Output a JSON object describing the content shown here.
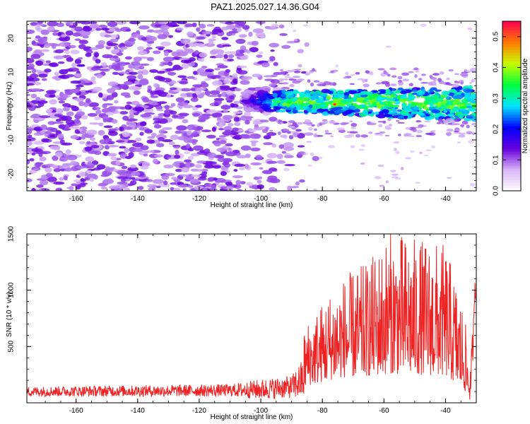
{
  "title": "PAZ1.2025.027.14.36.G04",
  "chart_data": [
    {
      "type": "heatmap",
      "xlabel": "Height of straight line (km)",
      "ylabel": "Frequency (Hz)",
      "xlim": [
        -176,
        -30
      ],
      "ylim": [
        -25,
        25
      ],
      "xticks": [
        -160,
        -140,
        -120,
        -100,
        -80,
        -60,
        -40
      ],
      "yticks": [
        -20,
        -10,
        0,
        10,
        20
      ],
      "colorbar": {
        "label": "Normalized spectral amplitude",
        "range": [
          0.0,
          0.55
        ],
        "ticks": [
          0.0,
          0.1,
          0.2,
          0.3,
          0.4,
          0.5
        ],
        "colors": [
          "#ffffff",
          "#d8b6f7",
          "#6600dd",
          "#0000ff",
          "#00e5ff",
          "#00ff40",
          "#c8ff00",
          "#ff7a00",
          "#ff0050"
        ]
      },
      "description_values": {
        "noise_region_x": [
          -176,
          -90
        ],
        "signal_band_x": [
          -106,
          -30
        ],
        "signal_center_freq_start": 1.5,
        "signal_center_freq_end": 0.5,
        "peak": {
          "x": -76,
          "y": 0.5,
          "value": 0.55
        }
      }
    },
    {
      "type": "line",
      "xlabel": "Height of straight line (km)",
      "ylabel": "SNR (10 * v/v)",
      "xlim": [
        -176,
        -30
      ],
      "ylim": [
        0,
        1500
      ],
      "xticks": [
        -160,
        -140,
        -120,
        -100,
        -80,
        -60,
        -40
      ],
      "yticks": [
        500,
        1000,
        1500
      ],
      "series": [
        {
          "color": "#ee2222",
          "envelope": [
            {
              "x": -176,
              "base": 100,
              "amp": 90
            },
            {
              "x": -110,
              "base": 110,
              "amp": 110
            },
            {
              "x": -100,
              "base": 120,
              "amp": 180
            },
            {
              "x": -90,
              "base": 140,
              "amp": 200
            },
            {
              "x": -85,
              "base": 230,
              "amp": 450
            },
            {
              "x": -75,
              "base": 300,
              "amp": 750
            },
            {
              "x": -65,
              "base": 320,
              "amp": 900
            },
            {
              "x": -58,
              "base": 340,
              "amp": 1150
            },
            {
              "x": -50,
              "base": 330,
              "amp": 1100
            },
            {
              "x": -40,
              "base": 320,
              "amp": 1050
            },
            {
              "x": -34,
              "base": 200,
              "amp": 600
            },
            {
              "x": -32,
              "base": 100,
              "amp": 150
            },
            {
              "x": -30,
              "base": 900,
              "amp": 300
            }
          ]
        }
      ]
    }
  ]
}
